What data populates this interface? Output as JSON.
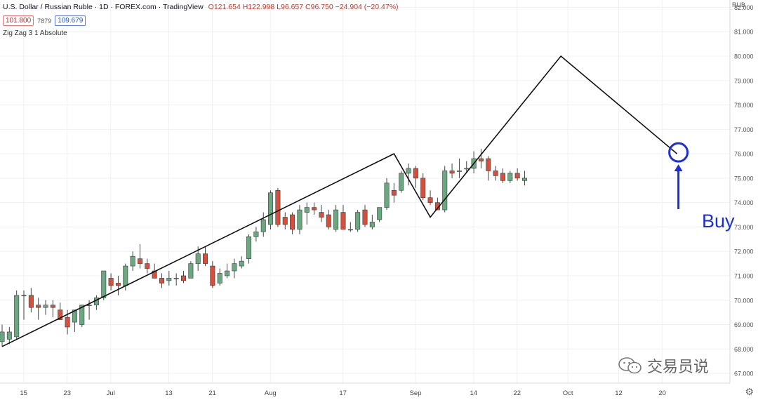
{
  "header": {
    "symbol": "U.S. Dollar / Russian Ruble · 1D · FOREX.com · TradingView",
    "ohlc": "O121.654 H122.998 L96.657 C96.750 −24.904 (−20.47%)",
    "sell_price": "101.800",
    "spread": "7879",
    "buy_price": "109.679",
    "indicator": "Zig Zag 3 1 Absolute",
    "currency": "RUB"
  },
  "colors": {
    "up": "#6aa882",
    "down": "#d4503e",
    "zigzag": "#111111",
    "marker": "#1a2fd9",
    "grid": "#eef0f3"
  },
  "annotation": {
    "label": "Buy"
  },
  "watermark": {
    "text": "交易员说",
    "icon": "wechat-icon"
  },
  "settings_icon": "gear-icon",
  "chart_data": {
    "type": "candlestick",
    "ylim": [
      66.6,
      82.3
    ],
    "y_ticks": [
      "67.000",
      "68.000",
      "69.000",
      "70.000",
      "71.000",
      "72.000",
      "73.000",
      "74.000",
      "75.000",
      "76.000",
      "77.000",
      "78.000",
      "79.000",
      "80.000",
      "81.000",
      "82.000"
    ],
    "x_ticks": [
      {
        "label": "15",
        "i": 2
      },
      {
        "label": "23",
        "i": 8
      },
      {
        "label": "Jul",
        "i": 14
      },
      {
        "label": "13",
        "i": 22
      },
      {
        "label": "21",
        "i": 28
      },
      {
        "label": "Aug",
        "i": 36
      },
      {
        "label": "17",
        "i": 46
      },
      {
        "label": "Sep",
        "i": 56
      },
      {
        "label": "14",
        "i": 64
      },
      {
        "label": "22",
        "i": 70
      },
      {
        "label": "Oct",
        "i": 77
      },
      {
        "label": "12",
        "i": 84
      },
      {
        "label": "20",
        "i": 90
      }
    ],
    "candles": [
      {
        "o": 68.3,
        "h": 69.0,
        "l": 68.1,
        "c": 68.7
      },
      {
        "o": 68.4,
        "h": 68.9,
        "l": 68.2,
        "c": 68.7
      },
      {
        "o": 68.5,
        "h": 70.4,
        "l": 68.4,
        "c": 70.2
      },
      {
        "o": 70.2,
        "h": 70.4,
        "l": 69.2,
        "c": 70.2
      },
      {
        "o": 70.2,
        "h": 70.5,
        "l": 69.5,
        "c": 69.7
      },
      {
        "o": 69.8,
        "h": 70.1,
        "l": 69.2,
        "c": 69.7
      },
      {
        "o": 69.7,
        "h": 70.0,
        "l": 69.4,
        "c": 69.8
      },
      {
        "o": 69.8,
        "h": 70.0,
        "l": 69.3,
        "c": 69.7
      },
      {
        "o": 69.6,
        "h": 69.9,
        "l": 69.2,
        "c": 69.2
      },
      {
        "o": 69.3,
        "h": 69.6,
        "l": 68.6,
        "c": 68.9
      },
      {
        "o": 69.1,
        "h": 69.6,
        "l": 68.7,
        "c": 69.6
      },
      {
        "o": 69.0,
        "h": 69.8,
        "l": 68.9,
        "c": 69.8
      },
      {
        "o": 69.8,
        "h": 70.0,
        "l": 69.2,
        "c": 69.8
      },
      {
        "o": 69.8,
        "h": 70.2,
        "l": 69.6,
        "c": 70.1
      },
      {
        "o": 70.1,
        "h": 71.2,
        "l": 70.0,
        "c": 71.2
      },
      {
        "o": 70.9,
        "h": 71.1,
        "l": 70.4,
        "c": 70.6
      },
      {
        "o": 70.7,
        "h": 71.0,
        "l": 70.2,
        "c": 70.6
      },
      {
        "o": 70.6,
        "h": 71.5,
        "l": 70.4,
        "c": 71.4
      },
      {
        "o": 71.4,
        "h": 72.0,
        "l": 71.2,
        "c": 71.8
      },
      {
        "o": 71.7,
        "h": 72.3,
        "l": 71.3,
        "c": 71.5
      },
      {
        "o": 71.5,
        "h": 71.7,
        "l": 71.1,
        "c": 71.3
      },
      {
        "o": 71.2,
        "h": 71.5,
        "l": 70.9,
        "c": 70.9
      },
      {
        "o": 70.9,
        "h": 71.1,
        "l": 70.5,
        "c": 70.7
      },
      {
        "o": 70.8,
        "h": 71.2,
        "l": 70.6,
        "c": 70.9
      },
      {
        "o": 70.9,
        "h": 71.1,
        "l": 70.6,
        "c": 70.9
      },
      {
        "o": 71.0,
        "h": 71.2,
        "l": 70.7,
        "c": 70.8
      },
      {
        "o": 70.9,
        "h": 71.6,
        "l": 70.9,
        "c": 71.5
      },
      {
        "o": 71.5,
        "h": 72.2,
        "l": 71.2,
        "c": 71.9
      },
      {
        "o": 71.9,
        "h": 72.2,
        "l": 71.4,
        "c": 71.5
      },
      {
        "o": 71.4,
        "h": 71.6,
        "l": 70.5,
        "c": 70.6
      },
      {
        "o": 70.7,
        "h": 71.3,
        "l": 70.6,
        "c": 71.1
      },
      {
        "o": 71.0,
        "h": 71.5,
        "l": 70.9,
        "c": 71.2
      },
      {
        "o": 71.2,
        "h": 71.7,
        "l": 70.9,
        "c": 71.5
      },
      {
        "o": 71.4,
        "h": 71.8,
        "l": 71.3,
        "c": 71.6
      },
      {
        "o": 71.7,
        "h": 72.7,
        "l": 71.5,
        "c": 72.6
      },
      {
        "o": 72.6,
        "h": 73.0,
        "l": 72.4,
        "c": 72.8
      },
      {
        "o": 72.8,
        "h": 73.6,
        "l": 72.6,
        "c": 73.3
      },
      {
        "o": 73.1,
        "h": 74.5,
        "l": 72.9,
        "c": 74.4
      },
      {
        "o": 74.5,
        "h": 74.6,
        "l": 73.0,
        "c": 73.1
      },
      {
        "o": 73.4,
        "h": 73.6,
        "l": 72.9,
        "c": 73.1
      },
      {
        "o": 73.5,
        "h": 73.6,
        "l": 72.7,
        "c": 72.9
      },
      {
        "o": 72.9,
        "h": 73.9,
        "l": 72.7,
        "c": 73.7
      },
      {
        "o": 73.6,
        "h": 74.0,
        "l": 73.1,
        "c": 73.8
      },
      {
        "o": 73.8,
        "h": 74.0,
        "l": 73.5,
        "c": 73.7
      },
      {
        "o": 73.6,
        "h": 73.9,
        "l": 73.2,
        "c": 73.4
      },
      {
        "o": 73.5,
        "h": 73.7,
        "l": 72.9,
        "c": 73.0
      },
      {
        "o": 72.9,
        "h": 73.9,
        "l": 72.8,
        "c": 73.7
      },
      {
        "o": 73.6,
        "h": 73.9,
        "l": 72.9,
        "c": 72.9
      },
      {
        "o": 72.9,
        "h": 73.2,
        "l": 72.8,
        "c": 72.9
      },
      {
        "o": 72.9,
        "h": 73.7,
        "l": 72.8,
        "c": 73.6
      },
      {
        "o": 73.7,
        "h": 73.9,
        "l": 73.0,
        "c": 73.1
      },
      {
        "o": 73.0,
        "h": 73.5,
        "l": 72.9,
        "c": 73.2
      },
      {
        "o": 73.3,
        "h": 73.8,
        "l": 73.2,
        "c": 73.8
      },
      {
        "o": 73.8,
        "h": 75.0,
        "l": 73.7,
        "c": 74.8
      },
      {
        "o": 74.5,
        "h": 74.8,
        "l": 74.0,
        "c": 74.3
      },
      {
        "o": 74.5,
        "h": 75.3,
        "l": 74.4,
        "c": 75.2
      },
      {
        "o": 75.2,
        "h": 75.6,
        "l": 74.7,
        "c": 75.4
      },
      {
        "o": 75.4,
        "h": 75.5,
        "l": 74.6,
        "c": 75.0
      },
      {
        "o": 75.0,
        "h": 75.2,
        "l": 74.1,
        "c": 74.2
      },
      {
        "o": 74.2,
        "h": 74.5,
        "l": 73.9,
        "c": 74.0
      },
      {
        "o": 74.0,
        "h": 74.2,
        "l": 73.7,
        "c": 73.7
      },
      {
        "o": 73.7,
        "h": 75.5,
        "l": 73.6,
        "c": 75.3
      },
      {
        "o": 75.3,
        "h": 75.6,
        "l": 75.0,
        "c": 75.2
      },
      {
        "o": 75.3,
        "h": 75.8,
        "l": 75.0,
        "c": 75.3
      },
      {
        "o": 75.4,
        "h": 75.7,
        "l": 75.2,
        "c": 75.4
      },
      {
        "o": 75.4,
        "h": 76.1,
        "l": 75.2,
        "c": 75.8
      },
      {
        "o": 75.8,
        "h": 76.2,
        "l": 75.4,
        "c": 75.7
      },
      {
        "o": 75.8,
        "h": 75.9,
        "l": 74.9,
        "c": 75.3
      },
      {
        "o": 75.3,
        "h": 75.5,
        "l": 74.9,
        "c": 75.1
      },
      {
        "o": 75.2,
        "h": 75.4,
        "l": 74.8,
        "c": 74.9
      },
      {
        "o": 74.9,
        "h": 75.3,
        "l": 74.8,
        "c": 75.2
      },
      {
        "o": 75.2,
        "h": 75.4,
        "l": 74.9,
        "c": 75.0
      },
      {
        "o": 74.9,
        "h": 75.3,
        "l": 74.7,
        "c": 75.0
      }
    ],
    "zigzag": [
      {
        "i": 0,
        "v": 68.1
      },
      {
        "i": 54,
        "v": 76.0
      },
      {
        "i": 59,
        "v": 73.4
      },
      {
        "i": 77,
        "v": 80.0
      },
      {
        "i": 93,
        "v": 76.0
      }
    ]
  }
}
